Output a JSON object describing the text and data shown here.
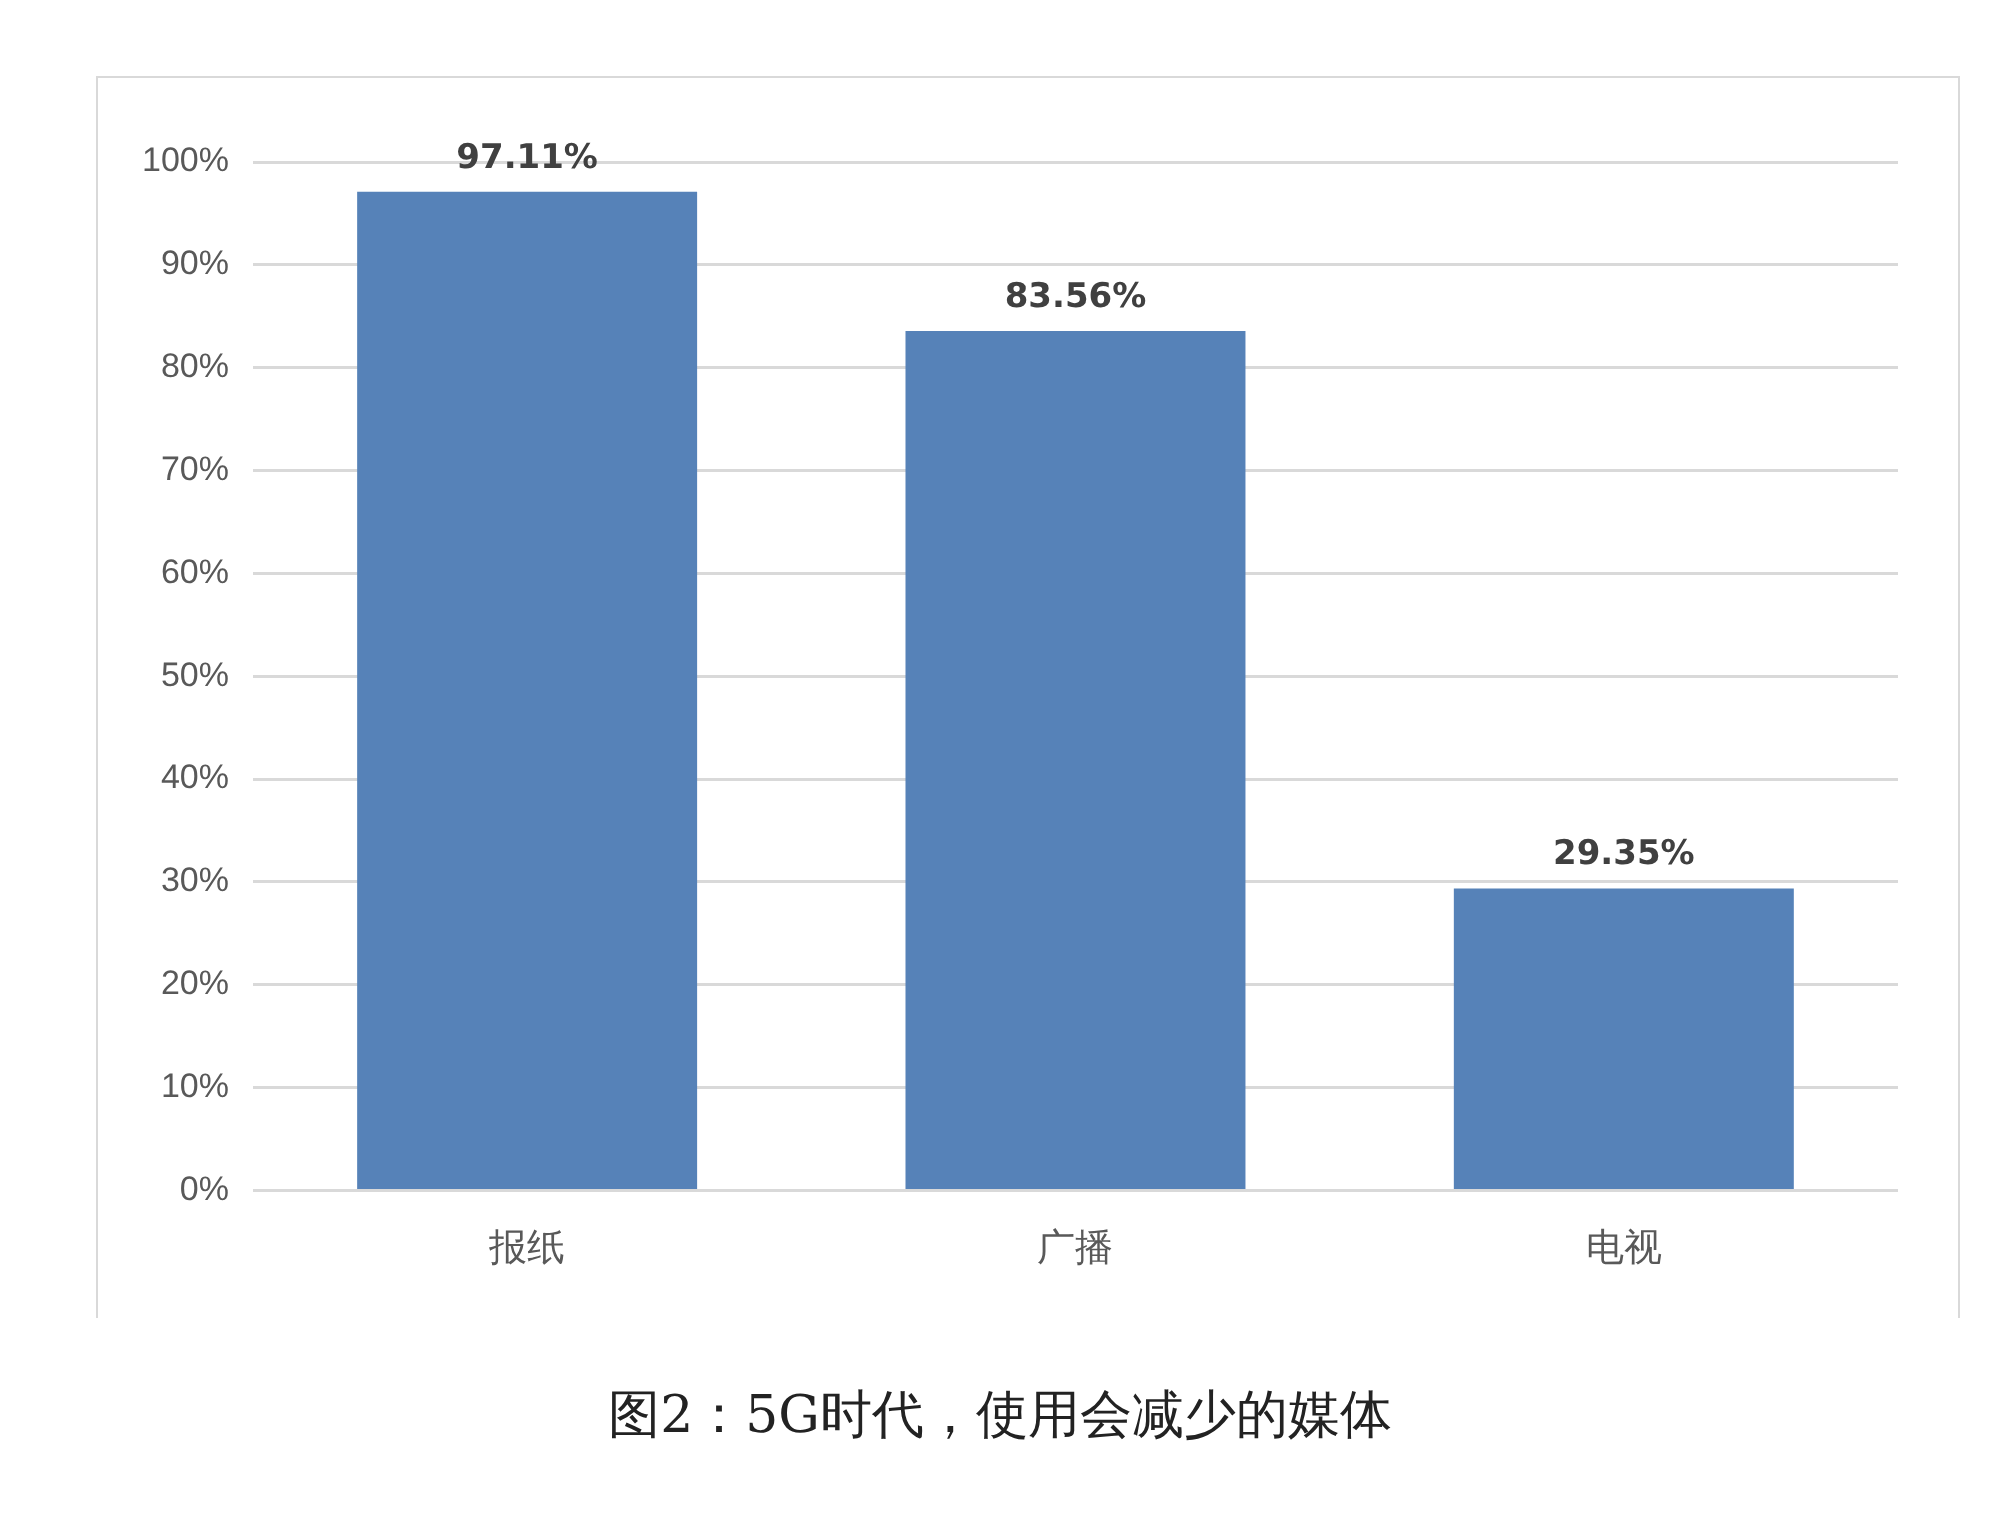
{
  "chart_data": {
    "type": "bar",
    "title": "图2：5G时代，使用会减少的媒体",
    "categories": [
      "报纸",
      "广播",
      "电视"
    ],
    "values": [
      97.11,
      83.56,
      29.35
    ],
    "value_labels": [
      "97.11%",
      "83.56%",
      "29.35%"
    ],
    "color": "#5682b8",
    "ylim": [
      0,
      100
    ],
    "yticks": [
      {
        "value": 0,
        "label": "0%"
      },
      {
        "value": 10,
        "label": "10%"
      },
      {
        "value": 20,
        "label": "20%"
      },
      {
        "value": 30,
        "label": "30%"
      },
      {
        "value": 40,
        "label": "40%"
      },
      {
        "value": 50,
        "label": "50%"
      },
      {
        "value": 60,
        "label": "60%"
      },
      {
        "value": 70,
        "label": "70%"
      },
      {
        "value": 80,
        "label": "80%"
      },
      {
        "value": 90,
        "label": "90%"
      },
      {
        "value": 100,
        "label": "100%"
      }
    ],
    "grid": "y",
    "legend": false
  }
}
